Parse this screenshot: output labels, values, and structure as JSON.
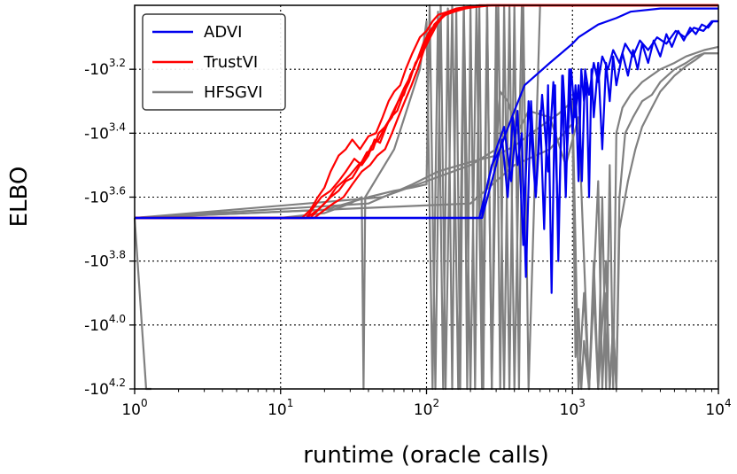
{
  "chart_data": {
    "type": "line",
    "xlabel": "runtime (oracle calls)",
    "ylabel": "ELBO",
    "xscale": "log",
    "yscale": "negative-log",
    "xlim": [
      1,
      10000
    ],
    "ylim_exponent": [
      4.2,
      3.0
    ],
    "grid": true,
    "legend_position": "top-left",
    "x_ticks": [
      {
        "value": 1,
        "base": "10",
        "exp": "0"
      },
      {
        "value": 10,
        "base": "10",
        "exp": "1"
      },
      {
        "value": 100,
        "base": "10",
        "exp": "2"
      },
      {
        "value": 1000,
        "base": "10",
        "exp": "3"
      },
      {
        "value": 10000,
        "base": "10",
        "exp": "4"
      }
    ],
    "y_ticks": [
      {
        "exponent": 3.2,
        "base": "-10",
        "exp": "3.2"
      },
      {
        "exponent": 3.4,
        "base": "-10",
        "exp": "3.4"
      },
      {
        "exponent": 3.6,
        "base": "-10",
        "exp": "3.6"
      },
      {
        "exponent": 3.8,
        "base": "-10",
        "exp": "3.8"
      },
      {
        "exponent": 4.0,
        "base": "-10",
        "exp": "4.0"
      },
      {
        "exponent": 4.2,
        "base": "-10",
        "exp": "4.2"
      }
    ],
    "legend": [
      {
        "label": "ADVI",
        "color": "#0000ee"
      },
      {
        "label": "TrustVI",
        "color": "#ff0000"
      },
      {
        "label": "HFSGVI",
        "color": "#808080"
      }
    ],
    "series": [
      {
        "name": "ADVI",
        "color": "#0000ee",
        "lines": [
          {
            "x": [
              1,
              50,
              240,
              250,
              280,
              320,
              350,
              400,
              470,
              700,
              1000,
              1100,
              1500,
              2000,
              2500,
              4000,
              10000
            ],
            "y": [
              3.665,
              3.665,
              3.665,
              3.6,
              3.5,
              3.45,
              3.4,
              3.33,
              3.25,
              3.18,
              3.12,
              3.1,
              3.06,
              3.04,
              3.02,
              3.01,
              3.01
            ]
          },
          {
            "x": [
              1,
              200,
              240,
              300,
              330,
              360,
              390,
              420,
              450,
              480,
              520,
              560,
              600,
              640,
              680,
              720,
              760,
              800,
              850,
              900,
              950,
              1000,
              1050,
              1100,
              1150,
              1200,
              1250,
              1300,
              1350,
              1400,
              1500,
              1600,
              1700,
              1800,
              1900,
              2000,
              2200,
              2400,
              2600,
              2800,
              3000,
              3300,
              3600,
              4000,
              4400,
              4800,
              5300,
              5800,
              6400,
              7000,
              7700,
              8500,
              9200,
              10000
            ],
            "y": [
              3.665,
              3.665,
              3.665,
              3.5,
              3.42,
              3.6,
              3.35,
              3.5,
              3.4,
              3.85,
              3.3,
              3.6,
              3.33,
              3.7,
              3.25,
              3.9,
              3.25,
              3.8,
              3.22,
              3.6,
              3.2,
              3.4,
              3.25,
              3.55,
              3.2,
              3.3,
              3.24,
              3.6,
              3.2,
              3.35,
              3.18,
              3.45,
              3.18,
              3.3,
              3.16,
              3.25,
              3.15,
              3.22,
              3.14,
              3.2,
              3.12,
              3.18,
              3.11,
              3.16,
              3.09,
              3.13,
              3.08,
              3.11,
              3.07,
              3.09,
              3.06,
              3.07,
              3.05,
              3.05
            ]
          },
          {
            "x": [
              1,
              230,
              300,
              340,
              380,
              420,
              460,
              500,
              560,
              620,
              680,
              740,
              800,
              860,
              920,
              980,
              1040,
              1100,
              1160,
              1220,
              1300,
              1400,
              1500,
              1600,
              1750,
              1900,
              2100,
              2300,
              2600,
              2900,
              3300,
              3800,
              4400,
              5100,
              5900,
              6800,
              7900,
              9000,
              10000
            ],
            "y": [
              3.665,
              3.665,
              3.45,
              3.38,
              3.55,
              3.33,
              3.75,
              3.3,
              3.6,
              3.28,
              3.52,
              3.24,
              3.7,
              3.22,
              3.45,
              3.2,
              3.35,
              3.25,
              3.55,
              3.2,
              3.28,
              3.18,
              3.24,
              3.16,
              3.2,
              3.14,
              3.18,
              3.12,
              3.16,
              3.11,
              3.14,
              3.1,
              3.12,
              3.08,
              3.1,
              3.07,
              3.08,
              3.05,
              3.05
            ]
          }
        ]
      },
      {
        "name": "TrustVI",
        "color": "#ff0000",
        "lines": [
          {
            "x": [
              1,
              14,
              16,
              18,
              20,
              22,
              25,
              28,
              31,
              35,
              40,
              45,
              50,
              55,
              60,
              66,
              72,
              80,
              90,
              100,
              110,
              120,
              140,
              170,
              210,
              260,
              350,
              500,
              1000,
              10000
            ],
            "y": [
              3.665,
              3.665,
              3.64,
              3.6,
              3.57,
              3.52,
              3.47,
              3.45,
              3.42,
              3.45,
              3.41,
              3.4,
              3.35,
              3.3,
              3.27,
              3.25,
              3.2,
              3.15,
              3.1,
              3.08,
              3.05,
              3.03,
              3.02,
              3.01,
              3.005,
              3.0,
              3.0,
              3.0,
              3.0,
              3.0
            ]
          },
          {
            "x": [
              1,
              15,
              17,
              19,
              22,
              25,
              28,
              32,
              36,
              40,
              44,
              48,
              53,
              58,
              64,
              70,
              77,
              85,
              95,
              105,
              115,
              130,
              150,
              180,
              220,
              280,
              10000
            ],
            "y": [
              3.665,
              3.665,
              3.63,
              3.6,
              3.58,
              3.55,
              3.52,
              3.48,
              3.5,
              3.47,
              3.42,
              3.43,
              3.38,
              3.34,
              3.3,
              3.28,
              3.22,
              3.18,
              3.12,
              3.08,
              3.06,
              3.03,
              3.02,
              3.01,
              3.005,
              3.0,
              3.0
            ]
          },
          {
            "x": [
              1,
              16,
              19,
              22,
              25,
              28,
              31,
              35,
              39,
              43,
              47,
              52,
              57,
              63,
              69,
              76,
              84,
              93,
              103,
              113,
              125,
              140,
              160,
              190,
              230,
              300,
              10000
            ],
            "y": [
              3.665,
              3.665,
              3.63,
              3.6,
              3.58,
              3.55,
              3.54,
              3.5,
              3.46,
              3.45,
              3.4,
              3.38,
              3.35,
              3.33,
              3.28,
              3.24,
              3.18,
              3.15,
              3.1,
              3.06,
              3.04,
              3.02,
              3.01,
              3.005,
              3.0,
              3.0,
              3.0
            ]
          },
          {
            "x": [
              1,
              17,
              20,
              23,
              27,
              31,
              36,
              41,
              46,
              52,
              58,
              64,
              71,
              79,
              87,
              96,
              106,
              118,
              132,
              150,
              175,
              210,
              260,
              10000
            ],
            "y": [
              3.665,
              3.665,
              3.64,
              3.62,
              3.6,
              3.56,
              3.52,
              3.5,
              3.47,
              3.45,
              3.4,
              3.35,
              3.3,
              3.25,
              3.2,
              3.14,
              3.1,
              3.06,
              3.03,
              3.02,
              3.01,
              3.005,
              3.0,
              3.0
            ]
          },
          {
            "x": [
              1,
              15,
              18,
              21,
              24,
              27,
              30,
              34,
              38,
              42,
              47,
              52,
              58,
              64,
              70,
              78,
              87,
              97,
              108,
              120,
              135,
              155,
              185,
              230,
              10000
            ],
            "y": [
              3.665,
              3.665,
              3.64,
              3.61,
              3.57,
              3.55,
              3.53,
              3.5,
              3.48,
              3.44,
              3.42,
              3.38,
              3.35,
              3.3,
              3.26,
              3.22,
              3.17,
              3.12,
              3.08,
              3.05,
              3.03,
              3.02,
              3.01,
              3.0,
              3.0
            ]
          }
        ]
      },
      {
        "name": "HFSGVI",
        "color": "#808080",
        "lines": [
          {
            "x": [
              1,
              1.2,
              1.3
            ],
            "y": [
              3.665,
              4.2,
              4.2
            ]
          },
          {
            "x": [
              1,
              10,
              20,
              30,
              36,
              37,
              38,
              60,
              90,
              100,
              110,
              120,
              130,
              140,
              150,
              160,
              170,
              180,
              190,
              200,
              215,
              230,
              245,
              260,
              280,
              300,
              320,
              340,
              370,
              400,
              430,
              460,
              500,
              600,
              1000,
              10000
            ],
            "y": [
              3.665,
              3.665,
              3.65,
              3.62,
              3.6,
              4.2,
              3.6,
              3.45,
              3.2,
              3.05,
              4.2,
              3.02,
              4.2,
              3.01,
              4.2,
              3.01,
              4.2,
              3.005,
              4.2,
              3.0,
              4.2,
              3.0,
              4.2,
              3.0,
              4.2,
              3.0,
              4.2,
              3.0,
              4.2,
              3.0,
              4.2,
              3.0,
              4.2,
              3.0,
              3.0,
              3.0
            ]
          },
          {
            "x": [
              1,
              20,
              40,
              60,
              80,
              100,
              105,
              115,
              125,
              135,
              150,
              165,
              180,
              200,
              220,
              240,
              260,
              280,
              310,
              340,
              370,
              400,
              450,
              500,
              10000
            ],
            "y": [
              3.665,
              3.64,
              3.6,
              3.58,
              3.57,
              3.56,
              3.0,
              4.2,
              3.0,
              4.2,
              3.0,
              4.2,
              3.0,
              4.2,
              3.0,
              4.2,
              3.0,
              4.2,
              3.0,
              4.2,
              3.0,
              4.2,
              3.0,
              3.0,
              3.0
            ]
          },
          {
            "x": [
              1,
              40,
              80,
              120,
              200,
              300,
              400,
              600,
              800,
              1000,
              1100,
              1200,
              1300,
              1400,
              1500,
              1600,
              1700,
              1800,
              1900,
              2000,
              2200,
              2500,
              3000,
              4000,
              5000,
              6000,
              8000,
              10000
            ],
            "y": [
              3.665,
              3.62,
              3.56,
              3.52,
              3.49,
              3.47,
              3.44,
              3.38,
              3.34,
              3.3,
              4.2,
              3.9,
              4.2,
              3.8,
              4.2,
              3.6,
              4.2,
              3.5,
              4.2,
              3.4,
              3.32,
              3.28,
              3.24,
              3.2,
              3.18,
              3.16,
              3.14,
              3.13
            ]
          },
          {
            "x": [
              1,
              50,
              100,
              200,
              300,
              320,
              360,
              420,
              500,
              700,
              900,
              1100,
              1300,
              1500,
              1600,
              1700,
              1800,
              1900,
              2000,
              2100,
              2300,
              2600,
              3000,
              3500,
              4000,
              5000,
              6000,
              7000,
              8000,
              10000
            ],
            "y": [
              3.665,
              3.6,
              3.55,
              3.5,
              3.45,
              3.27,
              3.3,
              3.4,
              3.33,
              3.35,
              3.5,
              3.35,
              4.2,
              3.55,
              4.2,
              3.9,
              4.2,
              4.0,
              4.2,
              3.6,
              3.4,
              3.35,
              3.3,
              3.28,
              3.24,
              3.2,
              3.18,
              3.16,
              3.15,
              3.15
            ]
          },
          {
            "x": [
              1,
              200,
              400,
              700,
              1000,
              1050,
              1100,
              1150,
              1200,
              1300,
              1400,
              1500,
              1700,
              1800,
              1900,
              2000,
              2100,
              2400,
              2700,
              3000,
              3500,
              4000,
              5000,
              6000,
              7000,
              8000,
              9000,
              10000
            ],
            "y": [
              3.665,
              3.62,
              3.5,
              3.45,
              3.37,
              4.1,
              3.95,
              4.2,
              4.05,
              4.2,
              3.9,
              4.2,
              3.8,
              4.2,
              4.0,
              4.2,
              3.7,
              3.55,
              3.45,
              3.38,
              3.32,
              3.27,
              3.22,
              3.19,
              3.17,
              3.15,
              3.15,
              3.15
            ]
          }
        ]
      }
    ]
  }
}
